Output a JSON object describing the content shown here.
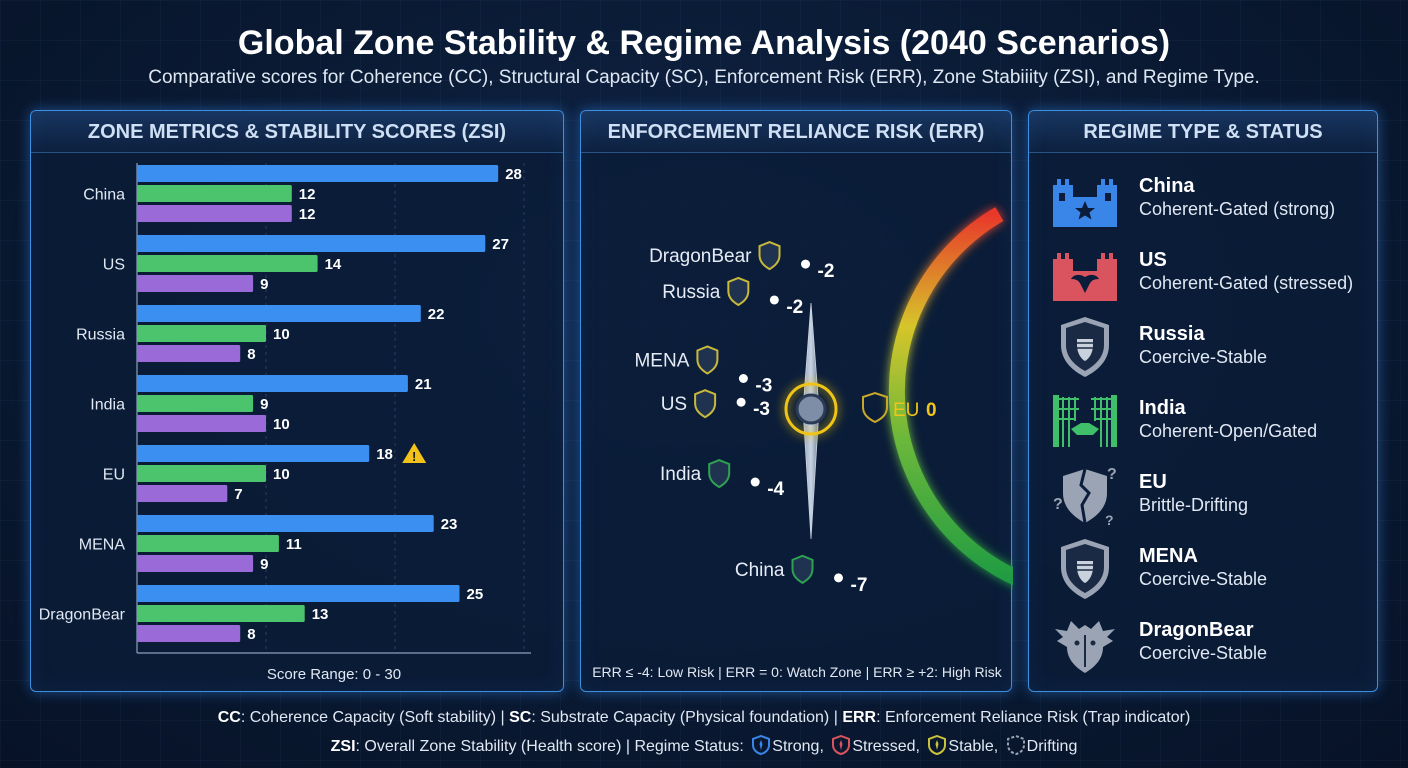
{
  "header": {
    "title": "Global Zone Stability & Regime Analysis (2040 Scenarios)",
    "subtitle": "Comparative scores for Coherence (CC), Structural Capacity (SC), Enforcement Risk (ERR), Zone Stabiiity (ZSI), and Regime Type."
  },
  "panels": {
    "metrics_title": "ZONE METRICS & STABILITY SCORES (ZSI)",
    "err_title": "ENFORCEMENT RELIANCE RISK (ERR)",
    "regime_title": "REGIME TYPE & STATUS"
  },
  "chart_data": [
    {
      "type": "bar",
      "title": "ZONE METRICS & STABILITY SCORES (ZSI)",
      "orientation": "horizontal",
      "categories": [
        "China",
        "US",
        "Russia",
        "India",
        "EU",
        "MENA",
        "DragonBear"
      ],
      "series": [
        {
          "name": "CC",
          "color": "#3b8ff0",
          "values": [
            28,
            27,
            22,
            21,
            18,
            23,
            25
          ]
        },
        {
          "name": "SC",
          "color": "#4cc46e",
          "values": [
            12,
            14,
            10,
            9,
            10,
            11,
            13
          ]
        },
        {
          "name": "ZSI",
          "color": "#9a6ad8",
          "values": [
            12,
            9,
            8,
            10,
            7,
            9,
            8
          ]
        }
      ],
      "xlim": [
        0,
        30
      ],
      "xlabel": "Score Range: 0 - 30",
      "warning_category": "EU",
      "warning_icon": "warning-icon"
    },
    {
      "type": "scatter",
      "title": "ENFORCEMENT RELIANCE RISK (ERR)",
      "points": [
        {
          "zone": "DragonBear",
          "value": -2,
          "label": "-2"
        },
        {
          "zone": "Russia",
          "value": -2,
          "label": "-2"
        },
        {
          "zone": "MENA",
          "value": -3,
          "label": "-3"
        },
        {
          "zone": "US",
          "value": -3,
          "label": "-3"
        },
        {
          "zone": "India",
          "value": -4,
          "label": "-4"
        },
        {
          "zone": "China",
          "value": -7,
          "label": "-7"
        }
      ],
      "center": {
        "zone": "EU",
        "value": 0,
        "label": "0"
      },
      "legend": "ERR ≤ -4: Low Risk | ERR = 0: Watch Zone | ERR ≥ +2: High Risk",
      "colors": {
        "high": "#e83a2a",
        "watch": "#d6c52a",
        "low": "#1e9b3f"
      }
    }
  ],
  "regimes": [
    {
      "zone": "China",
      "status": "Coherent-Gated (strong)",
      "icon": "castle-star-icon",
      "color": "#3a86e8"
    },
    {
      "zone": "US",
      "status": "Coherent-Gated (stressed)",
      "icon": "castle-eagle-icon",
      "color": "#d9545e"
    },
    {
      "zone": "Russia",
      "status": "Coercive-Stable",
      "icon": "shield-fist-icon",
      "color": "#9aa4b4"
    },
    {
      "zone": "India",
      "status": "Coherent-Open/Gated",
      "icon": "gate-handshake-icon",
      "color": "#3fbf6a"
    },
    {
      "zone": "EU",
      "status": "Brittle-Drifting",
      "icon": "cracked-shield-icon",
      "color": "#9aa4b4"
    },
    {
      "zone": "MENA",
      "status": "Coercive-Stable",
      "icon": "shield-fist-icon",
      "color": "#9aa4b4"
    },
    {
      "zone": "DragonBear",
      "status": "Coercive-Stable",
      "icon": "dragon-bear-icon",
      "color": "#9aa4b4"
    }
  ],
  "footer": {
    "line1": [
      {
        "b": "CC",
        "t": ": Coherence Capacity (Soft stability) | "
      },
      {
        "b": "SC",
        "t": ": Substrate Capacity (Physical foundation) | "
      },
      {
        "b": "ERR",
        "t": ": Enforcement Reliance Risk (Trap indicator)"
      }
    ],
    "line2_lead": "ZSI",
    "line2_text": ": Overall Zone Stability (Health score) | Regime Status:",
    "status_legend": [
      {
        "label": "Strong,",
        "icon": "strong-status-icon",
        "color": "#3a86e8"
      },
      {
        "label": "Stressed,",
        "icon": "stressed-status-icon",
        "color": "#d9545e"
      },
      {
        "label": "Stable,",
        "icon": "stable-status-icon",
        "color": "#c9c23a"
      },
      {
        "label": "Drifting",
        "icon": "drifting-status-icon",
        "color": "#9aa4b4"
      }
    ]
  }
}
